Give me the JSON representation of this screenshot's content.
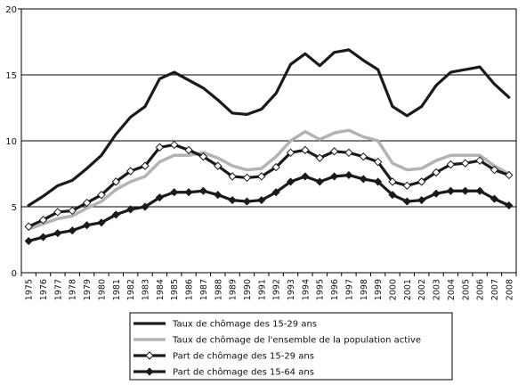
{
  "chart_data": {
    "type": "line",
    "title": "",
    "xlabel": "",
    "ylabel": "",
    "ylim": [
      0,
      20
    ],
    "yticks": [
      0,
      5,
      10,
      15,
      20
    ],
    "grid": "horizontal",
    "legend_position": "bottom",
    "x": [
      "1975",
      "1976",
      "1977",
      "1978",
      "1979",
      "1980",
      "1981",
      "1982",
      "1983",
      "1984",
      "1985",
      "1986",
      "1987",
      "1988",
      "1989",
      "1990",
      "1991",
      "1992",
      "1993",
      "1994",
      "1995",
      "1996",
      "1997",
      "1998",
      "1999",
      "2000",
      "2001",
      "2002",
      "2003",
      "2004",
      "2005",
      "2006",
      "2007",
      "2008"
    ],
    "series": [
      {
        "name": "Taux de chômage des 15-29 ans",
        "color": "#1a1a1a",
        "marker": "none",
        "values": [
          5.1,
          5.8,
          6.6,
          7.0,
          7.9,
          8.9,
          10.5,
          11.8,
          12.6,
          14.7,
          15.2,
          14.6,
          14.0,
          13.1,
          12.1,
          12.0,
          12.4,
          13.6,
          15.8,
          16.6,
          15.7,
          16.7,
          16.9,
          16.1,
          15.4,
          12.6,
          11.9,
          12.6,
          14.2,
          15.2,
          15.4,
          15.6,
          14.3,
          13.3
        ]
      },
      {
        "name": "Taux de chômage de l'ensemble de la population active",
        "color": "#b3b3b3",
        "marker": "none",
        "values": [
          3.3,
          3.7,
          4.1,
          4.3,
          4.9,
          5.4,
          6.3,
          6.9,
          7.3,
          8.4,
          8.9,
          8.9,
          9.1,
          8.7,
          8.1,
          7.8,
          7.9,
          8.8,
          10.0,
          10.7,
          10.1,
          10.6,
          10.8,
          10.3,
          10.0,
          8.3,
          7.8,
          7.9,
          8.5,
          8.9,
          8.9,
          8.9,
          8.1,
          7.5
        ]
      },
      {
        "name": "Part de chômage des 15-29 ans",
        "color": "#1a1a1a",
        "marker": "diamond-open",
        "values": [
          3.5,
          4.0,
          4.6,
          4.7,
          5.3,
          5.9,
          6.9,
          7.7,
          8.1,
          9.5,
          9.7,
          9.3,
          8.8,
          8.1,
          7.3,
          7.2,
          7.3,
          8.0,
          9.1,
          9.3,
          8.7,
          9.2,
          9.1,
          8.8,
          8.4,
          6.9,
          6.6,
          6.9,
          7.6,
          8.2,
          8.3,
          8.5,
          7.8,
          7.4
        ]
      },
      {
        "name": "Part de chômage des 15-64 ans",
        "color": "#1a1a1a",
        "marker": "diamond-filled",
        "values": [
          2.4,
          2.7,
          3.0,
          3.2,
          3.6,
          3.8,
          4.4,
          4.8,
          5.0,
          5.7,
          6.1,
          6.1,
          6.2,
          5.9,
          5.5,
          5.4,
          5.5,
          6.1,
          6.9,
          7.3,
          6.9,
          7.3,
          7.4,
          7.1,
          6.9,
          5.9,
          5.4,
          5.5,
          6.0,
          6.2,
          6.2,
          6.2,
          5.6,
          5.1
        ]
      }
    ]
  }
}
